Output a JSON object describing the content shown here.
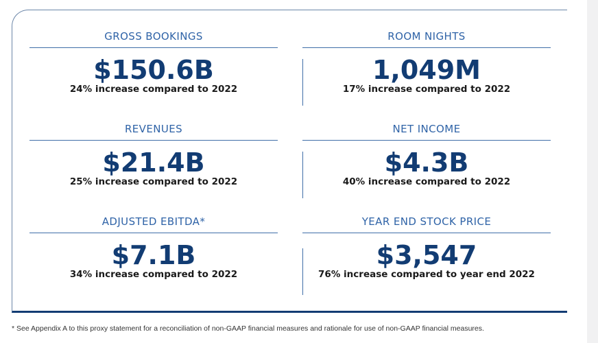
{
  "metrics": [
    {
      "label": "GROSS BOOKINGS",
      "value": "$150.6B",
      "note": "24% increase compared to 2022"
    },
    {
      "label": "ROOM NIGHTS",
      "value": "1,049M",
      "note": "17% increase compared to 2022"
    },
    {
      "label": "REVENUES",
      "value": "$21.4B",
      "note": "25% increase compared to 2022"
    },
    {
      "label": "NET INCOME",
      "value": "$4.3B",
      "note": "40% increase compared to 2022"
    },
    {
      "label": "ADJUSTED EBITDA*",
      "value": "$7.1B",
      "note": "34% increase compared to 2022"
    },
    {
      "label": "YEAR END STOCK PRICE",
      "value": "$3,547",
      "note": "76% increase compared to year end 2022"
    }
  ],
  "footnote": "* See Appendix A to this proxy statement for a reconciliation of non-GAAP financial measures and rationale for use of non-GAAP financial measures.",
  "colors": {
    "label": "#2f63a7",
    "value": "#123c73",
    "rule": "#3f6ea8",
    "note": "#1a1a1a"
  }
}
